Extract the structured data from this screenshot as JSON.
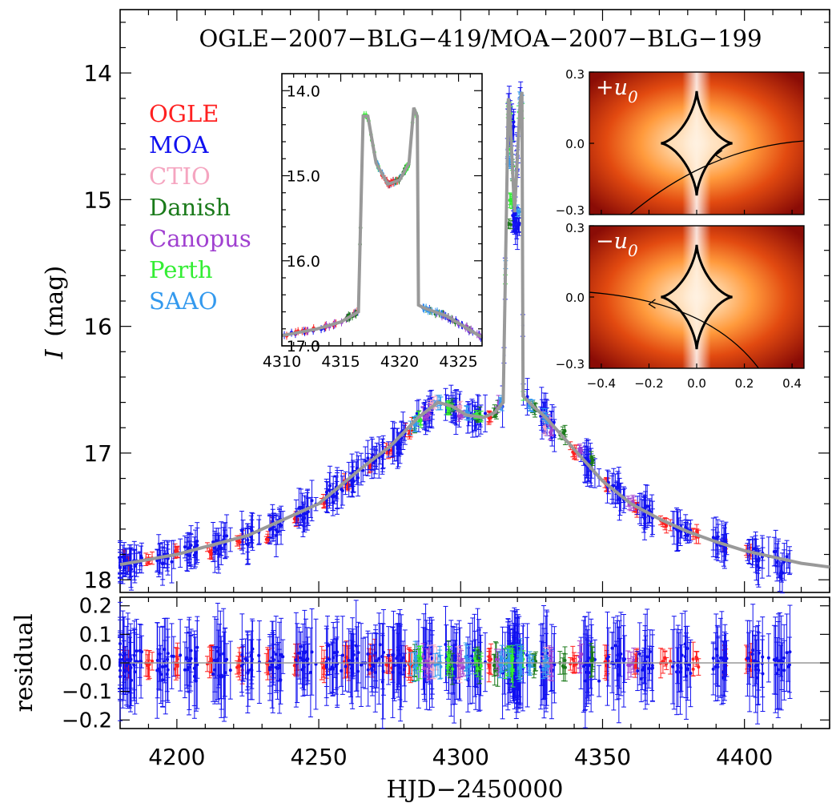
{
  "chart_data": {
    "type": "scatter",
    "title": "OGLE−2007−BLG−419/MOA−2007−BLG−199",
    "main": {
      "xlabel": "HJD−2450000",
      "ylabel_var": "I",
      "ylabel_unit": "(mag)",
      "xlim": [
        4180,
        4430
      ],
      "ylim": [
        18.1,
        13.5
      ],
      "xticks": [
        "4200",
        "4250",
        "4300",
        "4350",
        "4400"
      ],
      "xtick_values": [
        4200,
        4250,
        4300,
        4350,
        4400
      ],
      "yticks": [
        "14",
        "15",
        "16",
        "17",
        "18"
      ],
      "ytick_values": [
        14,
        15,
        16,
        17,
        18
      ],
      "model": {
        "x": [
          4180,
          4200,
          4225,
          4250,
          4265,
          4275,
          4285,
          4292,
          4297,
          4302,
          4308,
          4312,
          4315,
          4316.8,
          4317.2,
          4319.0,
          4321.0,
          4321.6,
          4322.0,
          4325,
          4330,
          4340,
          4350,
          4360,
          4370,
          4380,
          4390,
          4400,
          4410,
          4420,
          4430
        ],
        "y": [
          17.88,
          17.8,
          17.65,
          17.4,
          17.12,
          16.95,
          16.72,
          16.6,
          16.63,
          16.7,
          16.72,
          16.68,
          16.6,
          14.2,
          14.25,
          15.1,
          14.22,
          14.15,
          16.55,
          16.62,
          16.72,
          16.97,
          17.22,
          17.4,
          17.52,
          17.62,
          17.7,
          17.77,
          17.82,
          17.87,
          17.9
        ]
      },
      "series": [
        {
          "name": "OGLE",
          "color": "#ff2020",
          "points": [
            [
              4182,
              17.82
            ],
            [
              4190,
              17.85
            ],
            [
              4200,
              17.78
            ],
            [
              4212,
              17.8
            ],
            [
              4222,
              17.7
            ],
            [
              4232,
              17.68
            ],
            [
              4242,
              17.52
            ],
            [
              4252,
              17.4
            ],
            [
              4260,
              17.25
            ],
            [
              4268,
              17.1
            ],
            [
              4275,
              16.98
            ],
            [
              4282,
              16.85
            ],
            [
              4310,
              16.72
            ],
            [
              4340,
              17.0
            ],
            [
              4352,
              17.25
            ],
            [
              4362,
              17.43
            ],
            [
              4372,
              17.55
            ],
            [
              4383,
              17.63
            ],
            [
              4393,
              17.72
            ],
            [
              4402,
              17.78
            ]
          ]
        },
        {
          "name": "MOA",
          "color": "#1010f0",
          "points": [
            [
              4180,
              17.9
            ],
            [
              4185,
              17.85
            ],
            [
              4195,
              17.82
            ],
            [
              4205,
              17.78
            ],
            [
              4215,
              17.75
            ],
            [
              4225,
              17.7
            ],
            [
              4235,
              17.6
            ],
            [
              4245,
              17.5
            ],
            [
              4255,
              17.35
            ],
            [
              4262,
              17.2
            ],
            [
              4270,
              17.05
            ],
            [
              4278,
              16.95
            ],
            [
              4288,
              16.7
            ],
            [
              4298,
              16.65
            ],
            [
              4305,
              16.72
            ],
            [
              4318,
              14.4
            ],
            [
              4319,
              15.15
            ],
            [
              4320,
              15.2
            ],
            [
              4330,
              16.7
            ],
            [
              4345,
              17.08
            ],
            [
              4355,
              17.3
            ],
            [
              4365,
              17.45
            ],
            [
              4378,
              17.6
            ],
            [
              4392,
              17.72
            ],
            [
              4405,
              17.85
            ],
            [
              4413,
              17.95
            ]
          ]
        },
        {
          "name": "CTIO",
          "color": "#f5a5c0",
          "points": [
            [
              4290,
              16.62
            ],
            [
              4300,
              16.66
            ],
            [
              4330,
              16.8
            ]
          ]
        },
        {
          "name": "Danish",
          "color": "#1a7a1a",
          "points": [
            [
              4284,
              16.78
            ],
            [
              4296,
              16.65
            ],
            [
              4306,
              16.72
            ],
            [
              4312,
              16.68
            ],
            [
              4317,
              15.2
            ],
            [
              4326,
              16.65
            ],
            [
              4336,
              16.85
            ],
            [
              4346,
              17.05
            ]
          ]
        },
        {
          "name": "Canopus",
          "color": "#a040d0",
          "points": [
            [
              4288,
              16.72
            ],
            [
              4300,
              16.7
            ],
            [
              4314,
              16.62
            ],
            [
              4332,
              16.82
            ],
            [
              4342,
              16.98
            ],
            [
              4360,
              17.4
            ]
          ]
        },
        {
          "name": "Perth",
          "color": "#33ee33",
          "points": [
            [
              4286,
              16.74
            ],
            [
              4296,
              16.64
            ],
            [
              4306,
              16.7
            ],
            [
              4316.9,
              14.3
            ],
            [
              4317.4,
              14.6
            ],
            [
              4318,
              15.0
            ],
            [
              4321.2,
              14.3
            ]
          ]
        },
        {
          "name": "SAAO",
          "color": "#3399ee",
          "points": [
            [
              4284,
              16.76
            ],
            [
              4292,
              16.6
            ],
            [
              4302,
              16.68
            ],
            [
              4314,
              16.6
            ],
            [
              4317,
              14.7
            ],
            [
              4320,
              15.1
            ],
            [
              4321.5,
              14.2
            ],
            [
              4324,
              16.62
            ],
            [
              4330,
              16.72
            ]
          ]
        }
      ]
    },
    "residual": {
      "ylabel": "residual",
      "ylim": [
        -0.23,
        0.23
      ],
      "yticks": [
        "0.2",
        "0.1",
        "0.0",
        "−0.1",
        "−0.2"
      ],
      "ytick_values": [
        0.2,
        0.1,
        0.0,
        -0.1,
        -0.2
      ]
    },
    "inset_light_curve": {
      "xlim": [
        4310,
        4327
      ],
      "ylim": [
        17.0,
        13.8
      ],
      "xticks": [
        "4310",
        "4315",
        "4320",
        "4325"
      ],
      "xtick_values": [
        4310,
        4315,
        4320,
        4325
      ],
      "yticks": [
        "14.0",
        "15.0",
        "16.0",
        "17.0"
      ],
      "ytick_values": [
        14.0,
        15.0,
        16.0,
        17.0
      ],
      "model": {
        "x": [
          4310,
          4313,
          4315,
          4316.5,
          4316.9,
          4317.3,
          4318,
          4319,
          4320,
          4320.8,
          4321.2,
          4321.5,
          4321.6,
          4322,
          4324,
          4327
        ],
        "y": [
          16.88,
          16.8,
          16.72,
          16.6,
          14.3,
          14.3,
          14.85,
          15.1,
          15.05,
          14.85,
          14.2,
          14.3,
          16.52,
          16.55,
          16.65,
          16.9
        ]
      }
    },
    "inset_caustics": {
      "panels": [
        {
          "label": "+u",
          "subscript": "0",
          "trajectory": "upper"
        },
        {
          "label": "−u",
          "subscript": "0",
          "trajectory": "lower"
        }
      ],
      "xlim": [
        -0.45,
        0.45
      ],
      "ylim": [
        -0.3,
        0.3
      ],
      "xticks": [
        "−0.4",
        "−0.2",
        "0.0",
        "0.2",
        "0.4"
      ],
      "xtick_values": [
        -0.4,
        -0.2,
        0.0,
        0.2,
        0.4
      ],
      "yticks": [
        "0.3",
        "0.0",
        "−0.3"
      ],
      "ytick_values": [
        0.3,
        0.0,
        -0.3
      ]
    }
  }
}
